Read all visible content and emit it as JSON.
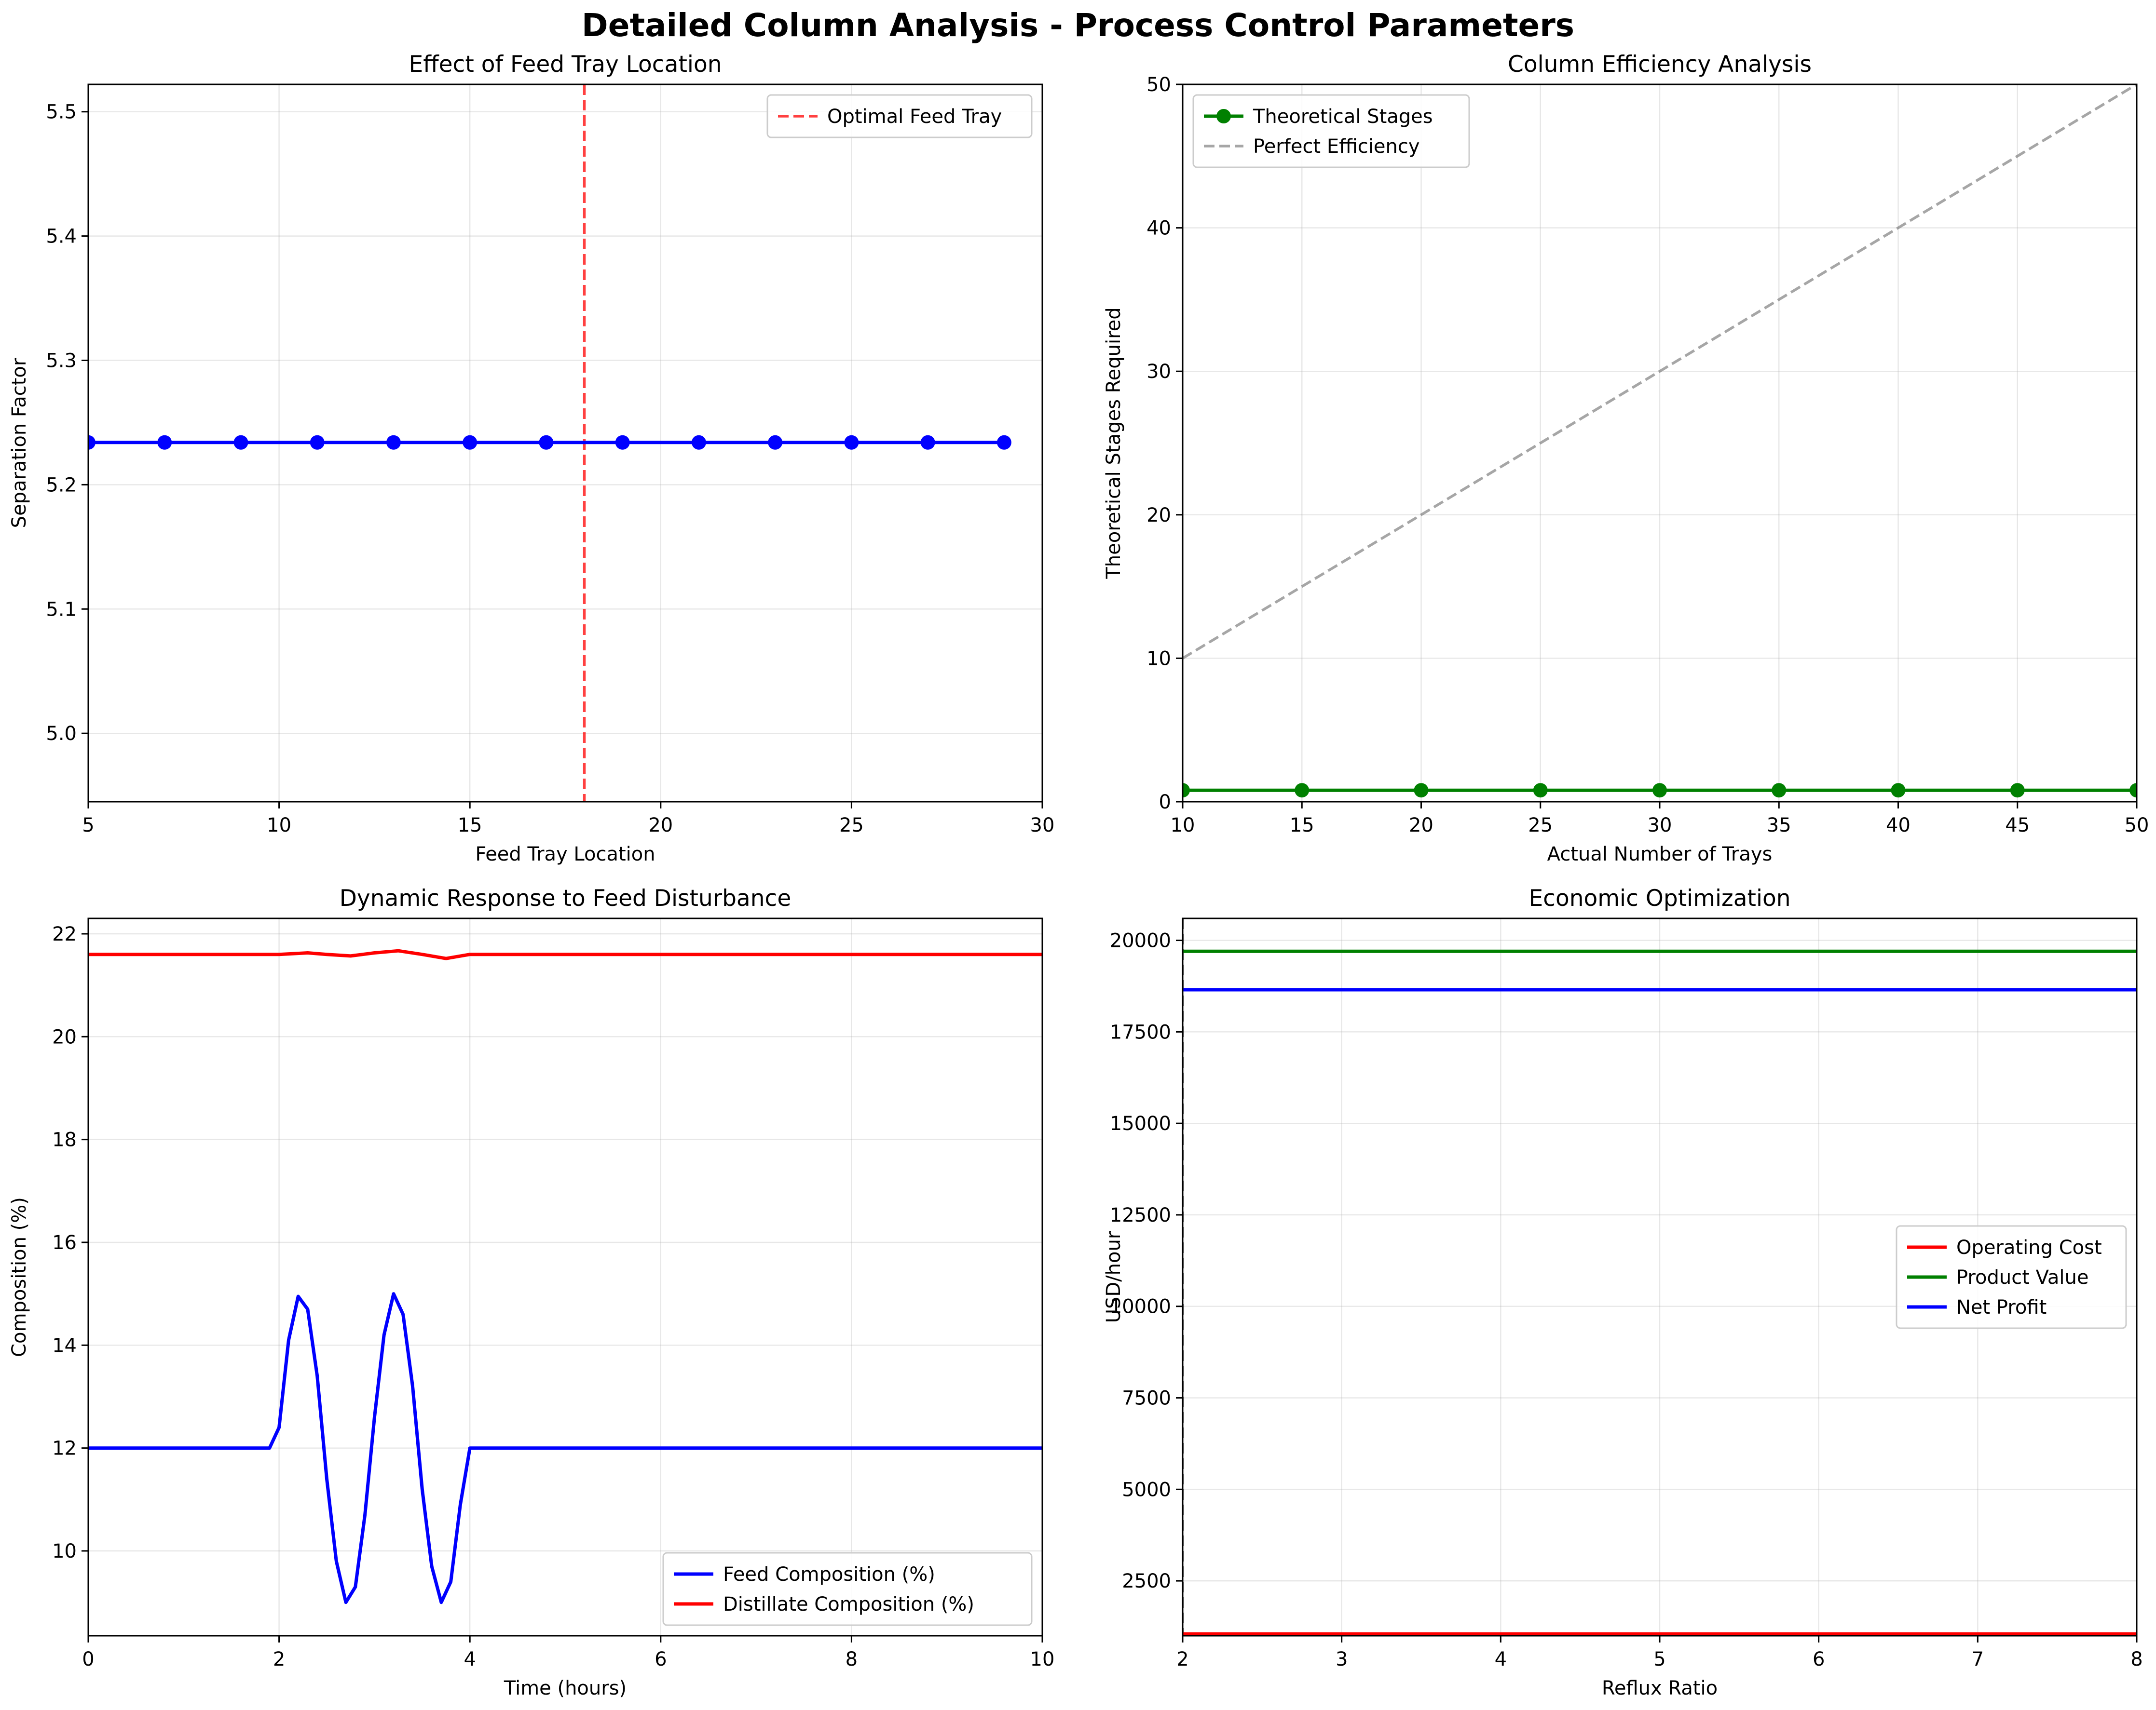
{
  "figure": {
    "title": "Detailed Column Analysis - Process Control Parameters"
  },
  "chart_data": [
    {
      "id": "p1",
      "type": "line",
      "title": "Effect of Feed Tray Location",
      "xlabel": "Feed Tray Location",
      "ylabel": "Separation Factor",
      "xlim": [
        5,
        30
      ],
      "ylim": [
        4.945,
        5.522
      ],
      "xticks": [
        5,
        10,
        15,
        20,
        25,
        30
      ],
      "yticks": [
        5.0,
        5.1,
        5.2,
        5.3,
        5.4,
        5.5
      ],
      "ytick_decimals": 1,
      "grid": true,
      "legend": "top-right",
      "series": [
        {
          "name": "",
          "color": "#0000ff",
          "marker": true,
          "dash": "",
          "x": [
            5,
            7,
            9,
            11,
            13,
            15,
            17,
            19,
            21,
            23,
            25,
            27,
            29
          ],
          "y": [
            5.234,
            5.234,
            5.234,
            5.234,
            5.234,
            5.234,
            5.234,
            5.234,
            5.234,
            5.234,
            5.234,
            5.234,
            5.234
          ]
        }
      ],
      "vlines": [
        {
          "name": "Optimal Feed Tray",
          "x": 18,
          "color": "#ff0000",
          "alpha": 0.75,
          "dash": "dashed"
        }
      ]
    },
    {
      "id": "p2",
      "type": "line",
      "title": "Column Efficiency Analysis",
      "xlabel": "Actual Number of Trays",
      "ylabel": "Theoretical Stages Required",
      "xlim": [
        10,
        50
      ],
      "ylim": [
        0,
        50
      ],
      "xticks": [
        10,
        15,
        20,
        25,
        30,
        35,
        40,
        45,
        50
      ],
      "yticks": [
        0,
        10,
        20,
        30,
        40,
        50
      ],
      "ytick_decimals": 0,
      "grid": true,
      "legend": "top-left",
      "series": [
        {
          "name": "Theoretical Stages",
          "color": "#008000",
          "marker": true,
          "dash": "",
          "x": [
            10,
            15,
            20,
            25,
            30,
            35,
            40,
            45,
            50
          ],
          "y": [
            0.8,
            0.8,
            0.8,
            0.8,
            0.8,
            0.8,
            0.8,
            0.8,
            0.8
          ]
        },
        {
          "name": "Perfect Efficiency",
          "color": "#808080",
          "marker": false,
          "dash": "dashed",
          "x": [
            10,
            50
          ],
          "y": [
            10,
            50
          ]
        }
      ]
    },
    {
      "id": "p3",
      "type": "line",
      "title": "Dynamic Response to Feed Disturbance",
      "xlabel": "Time (hours)",
      "ylabel": "Composition (%)",
      "xlim": [
        0,
        10
      ],
      "ylim": [
        8.35,
        22.3
      ],
      "xticks": [
        0,
        2,
        4,
        6,
        8,
        10
      ],
      "yticks": [
        10,
        12,
        14,
        16,
        18,
        20,
        22
      ],
      "ytick_decimals": 0,
      "grid": true,
      "legend": "bottom-right",
      "series": [
        {
          "name": "Feed Composition (%)",
          "color": "#0000ff",
          "marker": false,
          "dash": "",
          "x": [
            0,
            1.9,
            2.0,
            2.1,
            2.2,
            2.3,
            2.4,
            2.5,
            2.6,
            2.7,
            2.8,
            2.9,
            3.0,
            3.1,
            3.2,
            3.3,
            3.4,
            3.5,
            3.6,
            3.7,
            3.8,
            3.9,
            4.0,
            10
          ],
          "y": [
            12,
            12,
            12.4,
            14.1,
            14.95,
            14.7,
            13.4,
            11.4,
            9.8,
            9.0,
            9.3,
            10.7,
            12.6,
            14.2,
            15.0,
            14.6,
            13.2,
            11.2,
            9.7,
            9.0,
            9.4,
            10.9,
            12,
            12
          ]
        },
        {
          "name": "Distillate Composition (%)",
          "color": "#ff0000",
          "marker": false,
          "dash": "",
          "x": [
            0,
            2.0,
            2.3,
            2.5,
            2.75,
            3.0,
            3.25,
            3.5,
            3.75,
            4.0,
            10
          ],
          "y": [
            21.6,
            21.6,
            21.63,
            21.6,
            21.57,
            21.63,
            21.67,
            21.6,
            21.52,
            21.6,
            21.6
          ]
        }
      ]
    },
    {
      "id": "p4",
      "type": "line",
      "title": "Economic Optimization",
      "xlabel": "Reflux Ratio",
      "ylabel": "USD/hour",
      "xlim": [
        2,
        8
      ],
      "ylim": [
        1000,
        20600
      ],
      "xticks": [
        2,
        3,
        4,
        5,
        6,
        7,
        8
      ],
      "yticks": [
        2500,
        5000,
        7500,
        10000,
        12500,
        15000,
        17500,
        20000
      ],
      "ytick_decimals": 0,
      "grid": true,
      "legend": "center-right",
      "series": [
        {
          "name": "Operating Cost",
          "color": "#ff0000",
          "marker": false,
          "dash": "",
          "x": [
            2,
            8
          ],
          "y": [
            1050,
            1050
          ]
        },
        {
          "name": "Product Value",
          "color": "#008000",
          "marker": false,
          "dash": "",
          "x": [
            2,
            8
          ],
          "y": [
            19700,
            19700
          ]
        },
        {
          "name": "Net Profit",
          "color": "#0000ff",
          "marker": false,
          "dash": "",
          "x": [
            2,
            8
          ],
          "y": [
            18650,
            18650
          ]
        }
      ],
      "vlines": [
        {
          "name": "",
          "x": 2,
          "color": "#000000",
          "alpha": 0.5,
          "dash": "dashed"
        }
      ]
    }
  ]
}
